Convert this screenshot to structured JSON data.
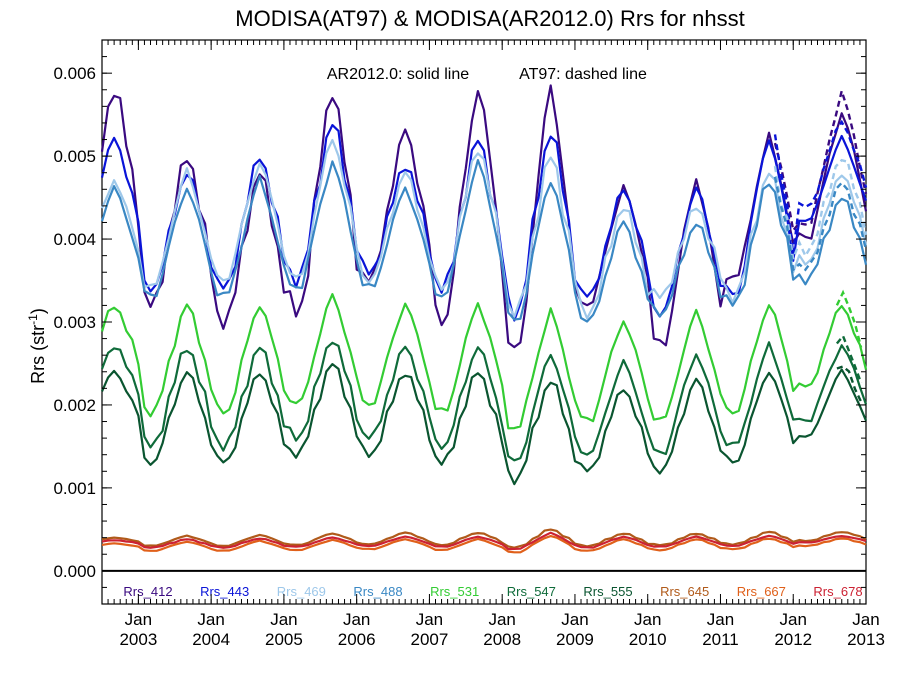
{
  "chart_data": {
    "type": "line",
    "title": "MODISA(AT97) & MODISA(AR2012.0)  Rrs for nhsst",
    "ylabel": {
      "base": "Rrs (str",
      "sup": "-1",
      "close": ")"
    },
    "annotation_solid": "AR2012.0: solid line",
    "annotation_dashed": "AT97: dashed line",
    "xlim": [
      2002.5,
      2013.0
    ],
    "ylim": [
      -0.0004,
      0.0064
    ],
    "yticks": [
      {
        "value": 0.0,
        "label": "0.000"
      },
      {
        "value": 0.001,
        "label": "0.001"
      },
      {
        "value": 0.002,
        "label": "0.002"
      },
      {
        "value": 0.003,
        "label": "0.003"
      },
      {
        "value": 0.004,
        "label": "0.004"
      },
      {
        "value": 0.005,
        "label": "0.005"
      },
      {
        "value": 0.006,
        "label": "0.006"
      }
    ],
    "xticks": [
      {
        "value": 2003,
        "month": "Jan",
        "year": "2003"
      },
      {
        "value": 2004,
        "month": "Jan",
        "year": "2004"
      },
      {
        "value": 2005,
        "month": "Jan",
        "year": "2005"
      },
      {
        "value": 2006,
        "month": "Jan",
        "year": "2006"
      },
      {
        "value": 2007,
        "month": "Jan",
        "year": "2007"
      },
      {
        "value": 2008,
        "month": "Jan",
        "year": "2008"
      },
      {
        "value": 2009,
        "month": "Jan",
        "year": "2009"
      },
      {
        "value": 2010,
        "month": "Jan",
        "year": "2010"
      },
      {
        "value": 2011,
        "month": "Jan",
        "year": "2011"
      },
      {
        "value": 2012,
        "month": "Jan",
        "year": "2012"
      },
      {
        "value": 2013,
        "month": "Jan",
        "year": "2013"
      }
    ],
    "zero_line": 0.0,
    "grid": false,
    "legend_position": "bottom-inside",
    "series": [
      {
        "name": "Rrs_412",
        "color": "#3a0a80",
        "base": 0.00405,
        "amp": 0.0011,
        "peaks": [
          0.0058,
          0.005,
          0.0048,
          0.0058,
          0.0053,
          0.0058,
          0.0058,
          0.0046,
          0.0047,
          0.0052,
          0.0055
        ],
        "troughs": [
          0.0038,
          0.0032,
          0.003,
          0.0031,
          0.0035,
          0.003,
          0.0026,
          0.0032,
          0.0027,
          0.0035,
          0.004
        ],
        "at97_dashed": {
          "from": 2011.75,
          "to": 2013.0
        }
      },
      {
        "name": "Rrs_443",
        "color": "#0a14d8",
        "peaks": [
          0.0052,
          0.0048,
          0.005,
          0.0054,
          0.0049,
          0.0052,
          0.0053,
          0.0046,
          0.0046,
          0.0052,
          0.0052
        ],
        "troughs": [
          0.0039,
          0.0034,
          0.0034,
          0.0035,
          0.0036,
          0.0034,
          0.0031,
          0.0033,
          0.0031,
          0.0033,
          0.0042
        ],
        "at97_dashed": {
          "from": 2011.75,
          "to": 2013.0
        }
      },
      {
        "name": "Rrs_469",
        "color": "#9ec8ea",
        "peaks": [
          0.0047,
          0.0048,
          0.0049,
          0.0052,
          0.0048,
          0.0051,
          0.005,
          0.0044,
          0.0044,
          0.0048,
          0.0048
        ],
        "troughs": [
          0.0036,
          0.0034,
          0.0035,
          0.0035,
          0.0035,
          0.0034,
          0.0031,
          0.0031,
          0.0033,
          0.0033,
          0.0037
        ],
        "at97_dashed": {
          "from": 2011.75,
          "to": 2013.0
        }
      },
      {
        "name": "Rrs_488",
        "color": "#3a88c4",
        "peaks": [
          0.0046,
          0.0046,
          0.0047,
          0.0049,
          0.0046,
          0.0049,
          0.0047,
          0.0042,
          0.0042,
          0.0047,
          0.0045
        ],
        "troughs": [
          0.0035,
          0.0033,
          0.0033,
          0.0034,
          0.0034,
          0.0033,
          0.003,
          0.003,
          0.0031,
          0.0032,
          0.0035
        ],
        "at97_dashed": {
          "from": 2011.75,
          "to": 2013.0
        }
      },
      {
        "name": "Rrs_531",
        "color": "#33cc33",
        "peaks": [
          0.0032,
          0.0032,
          0.0032,
          0.0033,
          0.0032,
          0.0032,
          0.0031,
          0.003,
          0.0031,
          0.0032,
          0.0032
        ],
        "troughs": [
          0.0023,
          0.0019,
          0.0019,
          0.002,
          0.002,
          0.0019,
          0.0017,
          0.0018,
          0.0018,
          0.0019,
          0.0022
        ],
        "at97_dashed": {
          "from": 2012.6,
          "to": 2013.0
        }
      },
      {
        "name": "Rrs_547",
        "color": "#0f6b3a",
        "peaks": [
          0.0027,
          0.0027,
          0.0027,
          0.0028,
          0.0027,
          0.0027,
          0.0026,
          0.0025,
          0.0026,
          0.0027,
          0.0027
        ],
        "troughs": [
          0.002,
          0.0015,
          0.0015,
          0.0016,
          0.0016,
          0.0015,
          0.0013,
          0.0014,
          0.0014,
          0.0015,
          0.0018
        ],
        "at97_dashed": {
          "from": 2012.6,
          "to": 2013.0
        }
      },
      {
        "name": "Rrs_555",
        "color": "#0a5530",
        "peaks": [
          0.0024,
          0.0024,
          0.0024,
          0.0025,
          0.0024,
          0.0024,
          0.0023,
          0.0022,
          0.0023,
          0.0024,
          0.0024
        ],
        "troughs": [
          0.0017,
          0.0013,
          0.0013,
          0.0014,
          0.0014,
          0.0013,
          0.0011,
          0.0012,
          0.0012,
          0.0013,
          0.0016
        ],
        "at97_dashed": {
          "from": 2012.6,
          "to": 2013.0
        }
      },
      {
        "name": "Rrs_645",
        "color": "#b05a1a",
        "peaks": [
          0.0004,
          0.00042,
          0.00043,
          0.00045,
          0.00046,
          0.00046,
          0.0005,
          0.00045,
          0.00045,
          0.00047,
          0.00047
        ],
        "troughs": [
          0.00034,
          0.0003,
          0.0003,
          0.00031,
          0.00032,
          0.00031,
          0.00028,
          0.0003,
          0.00031,
          0.00032,
          0.00036
        ]
      },
      {
        "name": "Rrs_667",
        "color": "#e0601a",
        "peaks": [
          0.00033,
          0.00035,
          0.00036,
          0.00037,
          0.00038,
          0.00038,
          0.00042,
          0.00038,
          0.00038,
          0.00039,
          0.00039
        ],
        "troughs": [
          0.00028,
          0.00024,
          0.00024,
          0.00025,
          0.00026,
          0.00025,
          0.00022,
          0.00024,
          0.00025,
          0.00026,
          0.0003
        ]
      },
      {
        "name": "Rrs_678",
        "color": "#cc2233",
        "peaks": [
          0.00037,
          0.00038,
          0.00039,
          0.0004,
          0.00041,
          0.00041,
          0.00045,
          0.00041,
          0.00041,
          0.00042,
          0.00042
        ],
        "troughs": [
          0.00032,
          0.00028,
          0.00028,
          0.00029,
          0.0003,
          0.00029,
          0.00026,
          0.00028,
          0.00029,
          0.0003,
          0.00034
        ]
      }
    ]
  }
}
